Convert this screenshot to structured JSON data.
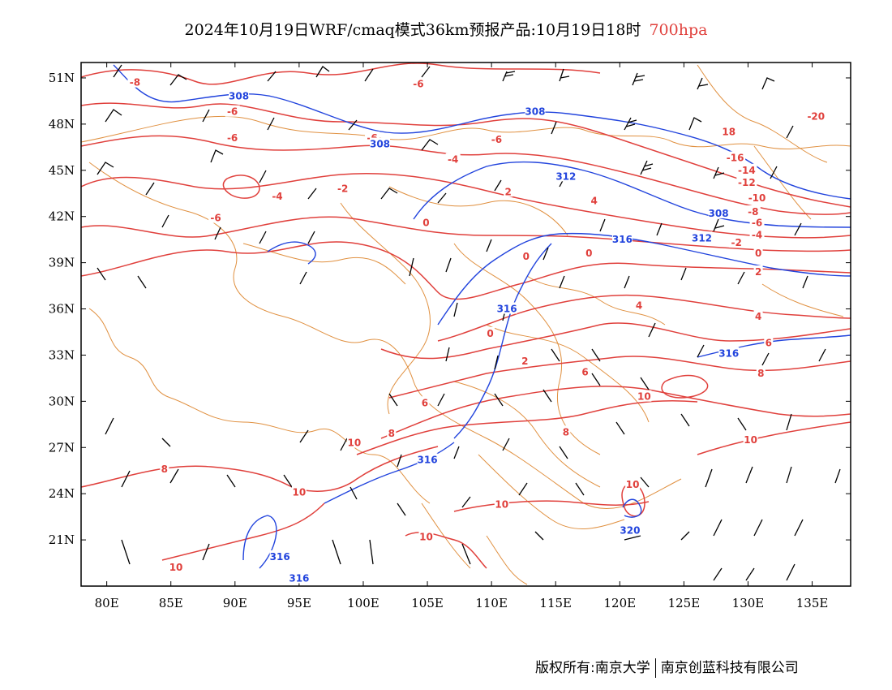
{
  "header": {
    "title": "2024年10月19日WRF/cmaq模式36km预报产品:10月19日18时",
    "level": "700hpa"
  },
  "map": {
    "lon_range": [
      78,
      138
    ],
    "lat_range": [
      18,
      52
    ],
    "lon_ticks": [
      {
        "value": 80,
        "label": "80E"
      },
      {
        "value": 85,
        "label": "85E"
      },
      {
        "value": 90,
        "label": "90E"
      },
      {
        "value": 95,
        "label": "95E"
      },
      {
        "value": 100,
        "label": "100E"
      },
      {
        "value": 105,
        "label": "105E"
      },
      {
        "value": 110,
        "label": "110E"
      },
      {
        "value": 115,
        "label": "115E"
      },
      {
        "value": 120,
        "label": "120E"
      },
      {
        "value": 125,
        "label": "125E"
      },
      {
        "value": 130,
        "label": "130E"
      },
      {
        "value": 135,
        "label": "135E"
      }
    ],
    "lat_ticks": [
      {
        "value": 21,
        "label": "21N"
      },
      {
        "value": 24,
        "label": "24N"
      },
      {
        "value": 27,
        "label": "27N"
      },
      {
        "value": 30,
        "label": "30N"
      },
      {
        "value": 33,
        "label": "33N"
      },
      {
        "value": 36,
        "label": "36N"
      },
      {
        "value": 39,
        "label": "39N"
      },
      {
        "value": 42,
        "label": "42N"
      },
      {
        "value": 45,
        "label": "45N"
      },
      {
        "value": 48,
        "label": "48N"
      },
      {
        "value": 51,
        "label": "51N"
      }
    ],
    "colors": {
      "temperature": "#e0403c",
      "geopotential": "#2244dd",
      "border": "#e09040",
      "wind": "#000000"
    },
    "temperature_labels": [
      {
        "text": "-8",
        "lon": 82.2,
        "lat": 50.7
      },
      {
        "text": "-6",
        "lon": 89.8,
        "lat": 48.8
      },
      {
        "text": "-6",
        "lon": 89.8,
        "lat": 47.1
      },
      {
        "text": "-6",
        "lon": 104.3,
        "lat": 50.6
      },
      {
        "text": "-6",
        "lon": 100.7,
        "lat": 47.1
      },
      {
        "text": "-6",
        "lon": 110.4,
        "lat": 47.0
      },
      {
        "text": "-4",
        "lon": 107.0,
        "lat": 45.7
      },
      {
        "text": "-2",
        "lon": 98.4,
        "lat": 43.8
      },
      {
        "text": "-4",
        "lon": 93.3,
        "lat": 43.3
      },
      {
        "text": "-6",
        "lon": 88.5,
        "lat": 41.9
      },
      {
        "text": "2",
        "lon": 111.3,
        "lat": 43.6
      },
      {
        "text": "4",
        "lon": 118.0,
        "lat": 43.0
      },
      {
        "text": "0",
        "lon": 104.9,
        "lat": 41.6
      },
      {
        "text": "0",
        "lon": 112.7,
        "lat": 39.4
      },
      {
        "text": "0",
        "lon": 117.6,
        "lat": 39.6
      },
      {
        "text": "4",
        "lon": 121.5,
        "lat": 36.2
      },
      {
        "text": "0",
        "lon": 109.9,
        "lat": 34.4
      },
      {
        "text": "2",
        "lon": 112.6,
        "lat": 32.6
      },
      {
        "text": "6",
        "lon": 117.3,
        "lat": 31.9
      },
      {
        "text": "6",
        "lon": 104.8,
        "lat": 29.9
      },
      {
        "text": "8",
        "lon": 102.2,
        "lat": 27.9
      },
      {
        "text": "10",
        "lon": 99.3,
        "lat": 27.3
      },
      {
        "text": "8",
        "lon": 115.8,
        "lat": 28.0
      },
      {
        "text": "10",
        "lon": 121.9,
        "lat": 30.3
      },
      {
        "text": "10",
        "lon": 130.2,
        "lat": 27.5
      },
      {
        "text": "8",
        "lon": 84.5,
        "lat": 25.6
      },
      {
        "text": "10",
        "lon": 95.0,
        "lat": 24.1
      },
      {
        "text": "10",
        "lon": 110.8,
        "lat": 23.3
      },
      {
        "text": "10",
        "lon": 104.9,
        "lat": 21.2
      },
      {
        "text": "10",
        "lon": 85.4,
        "lat": 19.2
      },
      {
        "text": "10",
        "lon": 121.0,
        "lat": 24.6
      },
      {
        "text": "-20",
        "lon": 135.3,
        "lat": 48.5
      },
      {
        "text": "18",
        "lon": 128.5,
        "lat": 47.5
      },
      {
        "text": "-16",
        "lon": 129.0,
        "lat": 45.8
      },
      {
        "text": "-14",
        "lon": 129.9,
        "lat": 45.0
      },
      {
        "text": "-12",
        "lon": 129.9,
        "lat": 44.2
      },
      {
        "text": "-10",
        "lon": 130.7,
        "lat": 43.2
      },
      {
        "text": "-8",
        "lon": 130.4,
        "lat": 42.3
      },
      {
        "text": "-6",
        "lon": 130.7,
        "lat": 41.6
      },
      {
        "text": "-4",
        "lon": 130.7,
        "lat": 40.8
      },
      {
        "text": "-2",
        "lon": 129.1,
        "lat": 40.3
      },
      {
        "text": "0",
        "lon": 130.8,
        "lat": 39.6
      },
      {
        "text": "2",
        "lon": 130.8,
        "lat": 38.4
      },
      {
        "text": "4",
        "lon": 130.8,
        "lat": 35.5
      },
      {
        "text": "6",
        "lon": 131.6,
        "lat": 33.8
      },
      {
        "text": "8",
        "lon": 131.0,
        "lat": 31.8
      }
    ],
    "geopotential_labels": [
      {
        "text": "308",
        "lon": 90.3,
        "lat": 49.8
      },
      {
        "text": "308",
        "lon": 101.3,
        "lat": 46.7
      },
      {
        "text": "308",
        "lon": 113.4,
        "lat": 48.8
      },
      {
        "text": "312",
        "lon": 115.8,
        "lat": 44.6
      },
      {
        "text": "308",
        "lon": 127.7,
        "lat": 42.2
      },
      {
        "text": "312",
        "lon": 126.4,
        "lat": 40.6
      },
      {
        "text": "316",
        "lon": 120.2,
        "lat": 40.5
      },
      {
        "text": "316",
        "lon": 111.2,
        "lat": 36.0
      },
      {
        "text": "316",
        "lon": 128.5,
        "lat": 33.1
      },
      {
        "text": "316",
        "lon": 105.0,
        "lat": 26.2
      },
      {
        "text": "316",
        "lon": 93.5,
        "lat": 19.9
      },
      {
        "text": "316",
        "lon": 95.0,
        "lat": 18.5
      },
      {
        "text": "320",
        "lon": 120.8,
        "lat": 21.6
      }
    ]
  },
  "footer": {
    "copyright_left": "版权所有:南京大学",
    "copyright_right": "南京创蓝科技有限公司"
  }
}
